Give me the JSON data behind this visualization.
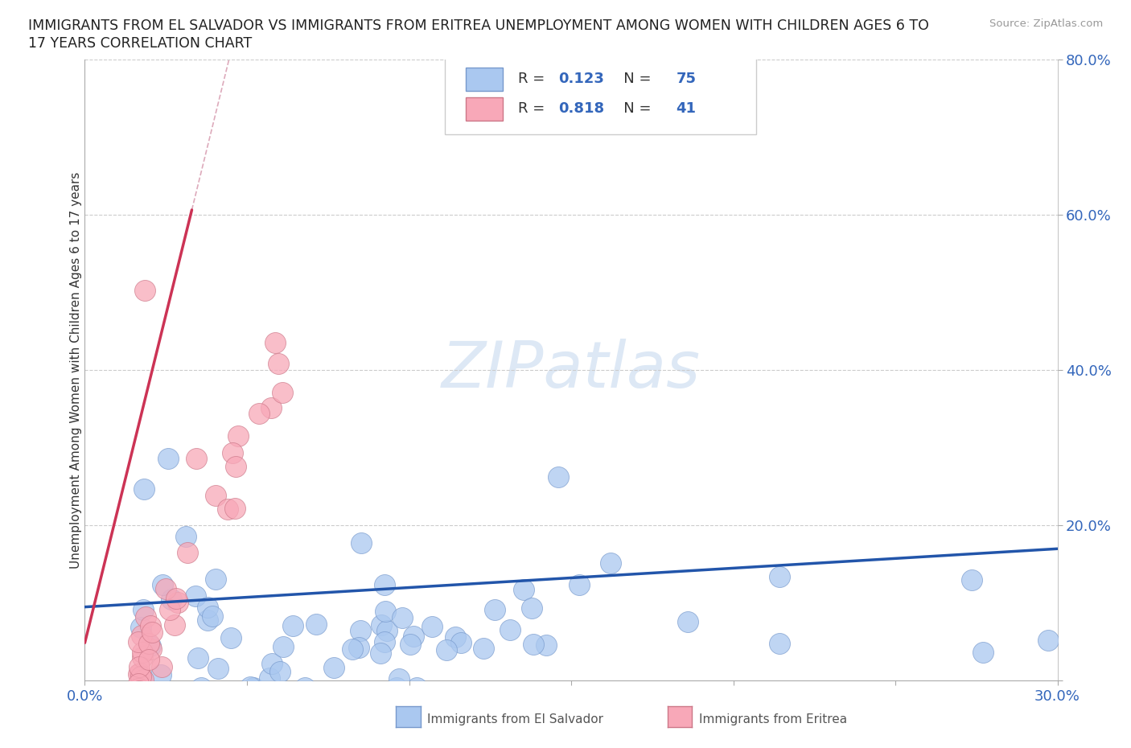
{
  "title_line1": "IMMIGRANTS FROM EL SALVADOR VS IMMIGRANTS FROM ERITREA UNEMPLOYMENT AMONG WOMEN WITH CHILDREN AGES 6 TO",
  "title_line2": "17 YEARS CORRELATION CHART",
  "source": "Source: ZipAtlas.com",
  "ylabel": "Unemployment Among Women with Children Ages 6 to 17 years",
  "xlim": [
    0.0,
    0.3
  ],
  "ylim": [
    0.0,
    0.8
  ],
  "blue_R": 0.123,
  "blue_N": 75,
  "pink_R": 0.818,
  "pink_N": 41,
  "blue_color": "#aac8f0",
  "pink_color": "#f8a8b8",
  "blue_edge_color": "#7799cc",
  "pink_edge_color": "#cc7788",
  "blue_trend_color": "#2255aa",
  "pink_trend_color": "#cc3355",
  "diag_color": "#ddaabb",
  "grid_color": "#cccccc",
  "watermark_color": "#dde8f5",
  "tick_color": "#3366bb",
  "background_color": "#ffffff",
  "watermark": "ZIPatlas"
}
